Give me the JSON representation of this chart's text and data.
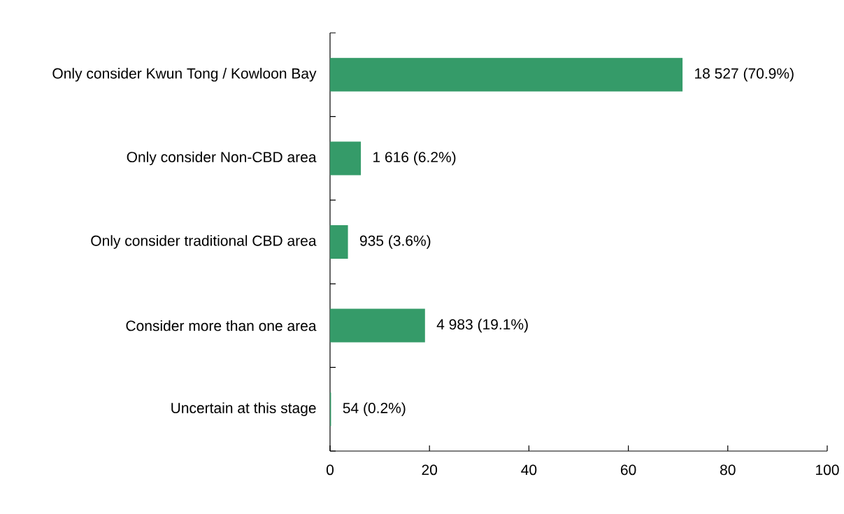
{
  "chart_data": {
    "type": "bar",
    "orientation": "horizontal",
    "categories": [
      "Only consider Kwun Tong / Kowloon Bay",
      "Only consider Non-CBD area",
      "Only consider traditional CBD area",
      "Consider more than one area",
      "Uncertain at this stage"
    ],
    "values": [
      70.9,
      6.2,
      3.6,
      19.1,
      0.2
    ],
    "value_labels": [
      "18 527 (70.9%)",
      "1 616 (6.2%)",
      "935 (3.6%)",
      "4 983 (19.1%)",
      "54 (0.2%)"
    ],
    "color": "#359b69",
    "xlim": [
      0,
      100
    ],
    "xticks": [
      0,
      20,
      40,
      60,
      80,
      100
    ],
    "grid": false
  }
}
